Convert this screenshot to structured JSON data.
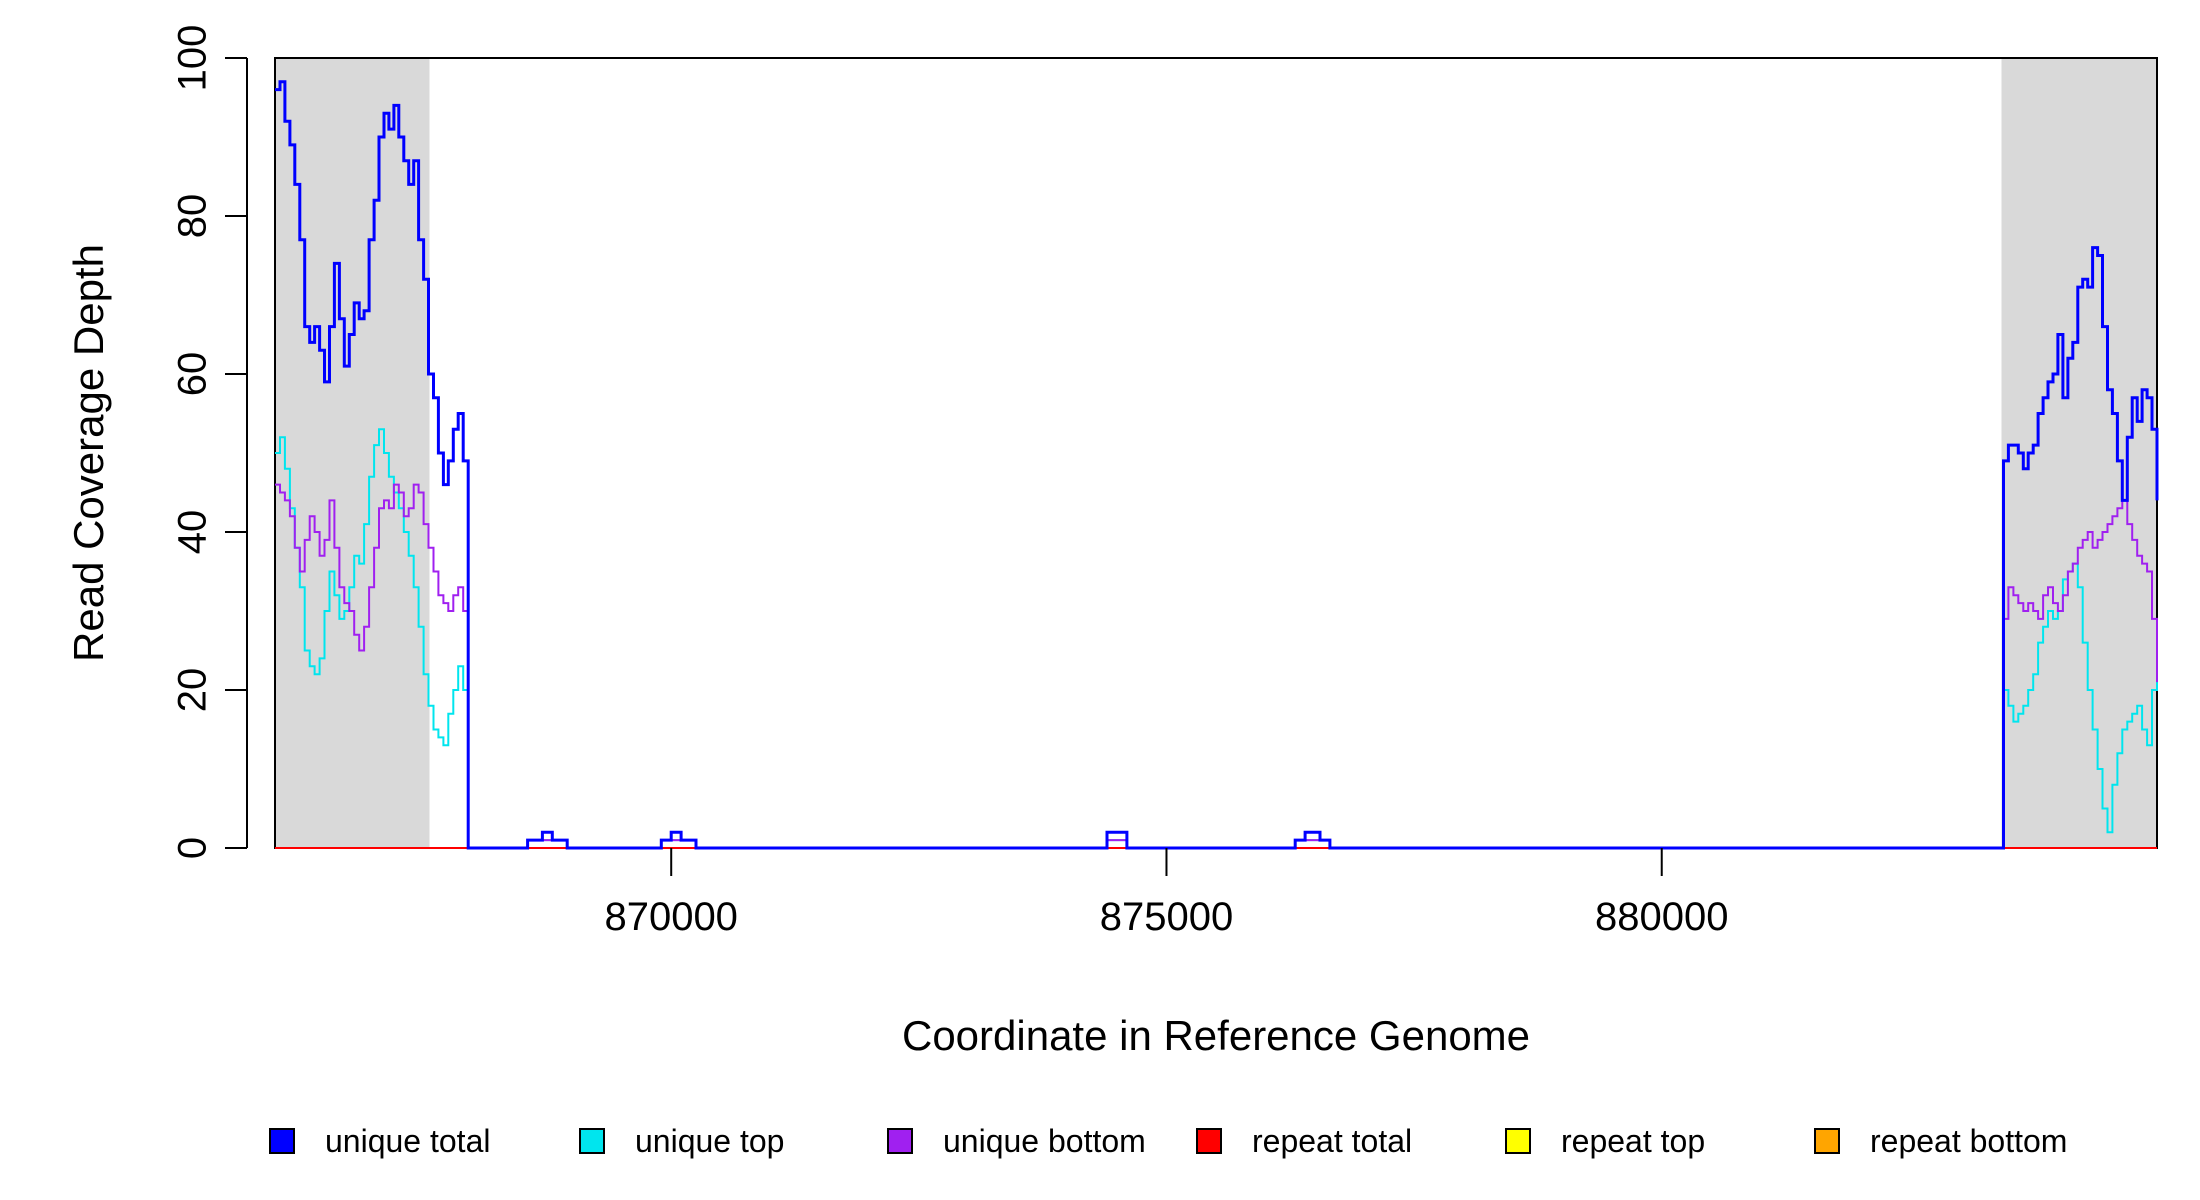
{
  "chart_data": {
    "type": "line",
    "title": "",
    "xlabel": "Coordinate in Reference Genome",
    "ylabel": "Read Coverage Depth",
    "xlim": [
      866000,
      885000
    ],
    "ylim": [
      0,
      100
    ],
    "x_ticks": [
      870000,
      875000,
      880000
    ],
    "x_tick_labels": [
      "870000",
      "875000",
      "880000"
    ],
    "y_ticks": [
      0,
      20,
      40,
      60,
      80,
      100
    ],
    "y_tick_labels": [
      "0",
      "20",
      "40",
      "60",
      "80",
      "100"
    ],
    "grid": false,
    "shaded_regions": [
      {
        "start": 866000,
        "end": 867560,
        "color": "#d9d9d9"
      },
      {
        "start": 883430,
        "end": 885000,
        "color": "#d9d9d9"
      }
    ],
    "legend_position": "bottom",
    "series": [
      {
        "name": "unique total",
        "color": "#0000ff",
        "points": [
          [
            866000,
            96
          ],
          [
            866050,
            97
          ],
          [
            866100,
            92
          ],
          [
            866150,
            89
          ],
          [
            866200,
            84
          ],
          [
            866250,
            77
          ],
          [
            866300,
            66
          ],
          [
            866350,
            64
          ],
          [
            866400,
            66
          ],
          [
            866450,
            63
          ],
          [
            866500,
            59
          ],
          [
            866550,
            66
          ],
          [
            866600,
            74
          ],
          [
            866650,
            67
          ],
          [
            866700,
            61
          ],
          [
            866750,
            65
          ],
          [
            866800,
            69
          ],
          [
            866850,
            67
          ],
          [
            866900,
            68
          ],
          [
            866950,
            77
          ],
          [
            867000,
            82
          ],
          [
            867050,
            90
          ],
          [
            867100,
            93
          ],
          [
            867150,
            91
          ],
          [
            867200,
            94
          ],
          [
            867250,
            90
          ],
          [
            867300,
            87
          ],
          [
            867350,
            84
          ],
          [
            867400,
            87
          ],
          [
            867450,
            77
          ],
          [
            867500,
            72
          ],
          [
            867550,
            60
          ],
          [
            867600,
            57
          ],
          [
            867650,
            50
          ],
          [
            867700,
            46
          ],
          [
            867750,
            49
          ],
          [
            867800,
            53
          ],
          [
            867850,
            55
          ],
          [
            867900,
            49
          ],
          [
            867950,
            0
          ],
          [
            868500,
            0
          ],
          [
            868550,
            1
          ],
          [
            868700,
            2
          ],
          [
            868800,
            1
          ],
          [
            868950,
            0
          ],
          [
            869850,
            0
          ],
          [
            869900,
            1
          ],
          [
            870000,
            2
          ],
          [
            870100,
            1
          ],
          [
            870250,
            0
          ],
          [
            874350,
            0
          ],
          [
            874400,
            2
          ],
          [
            874600,
            0
          ],
          [
            876200,
            0
          ],
          [
            876300,
            1
          ],
          [
            876400,
            2
          ],
          [
            876550,
            1
          ],
          [
            876650,
            0
          ],
          [
            883400,
            0
          ],
          [
            883450,
            49
          ],
          [
            883500,
            51
          ],
          [
            883600,
            50
          ],
          [
            883650,
            48
          ],
          [
            883700,
            50
          ],
          [
            883750,
            51
          ],
          [
            883800,
            55
          ],
          [
            883850,
            57
          ],
          [
            883900,
            59
          ],
          [
            883950,
            60
          ],
          [
            884000,
            65
          ],
          [
            884050,
            57
          ],
          [
            884100,
            62
          ],
          [
            884150,
            64
          ],
          [
            884200,
            71
          ],
          [
            884250,
            72
          ],
          [
            884300,
            71
          ],
          [
            884350,
            76
          ],
          [
            884400,
            75
          ],
          [
            884450,
            66
          ],
          [
            884500,
            58
          ],
          [
            884550,
            55
          ],
          [
            884600,
            49
          ],
          [
            884650,
            44
          ],
          [
            884700,
            52
          ],
          [
            884750,
            57
          ],
          [
            884800,
            54
          ],
          [
            884850,
            58
          ],
          [
            884900,
            57
          ],
          [
            884950,
            53
          ],
          [
            885000,
            44
          ]
        ]
      },
      {
        "name": "unique top",
        "color": "#00e5ee",
        "points": [
          [
            866000,
            50
          ],
          [
            866050,
            52
          ],
          [
            866100,
            48
          ],
          [
            866150,
            43
          ],
          [
            866200,
            38
          ],
          [
            866250,
            33
          ],
          [
            866300,
            25
          ],
          [
            866350,
            23
          ],
          [
            866400,
            22
          ],
          [
            866450,
            24
          ],
          [
            866500,
            30
          ],
          [
            866550,
            35
          ],
          [
            866600,
            32
          ],
          [
            866650,
            29
          ],
          [
            866700,
            30
          ],
          [
            866750,
            33
          ],
          [
            866800,
            37
          ],
          [
            866850,
            36
          ],
          [
            866900,
            41
          ],
          [
            866950,
            47
          ],
          [
            867000,
            51
          ],
          [
            867050,
            53
          ],
          [
            867100,
            50
          ],
          [
            867150,
            47
          ],
          [
            867200,
            45
          ],
          [
            867250,
            43
          ],
          [
            867300,
            40
          ],
          [
            867350,
            37
          ],
          [
            867400,
            33
          ],
          [
            867450,
            28
          ],
          [
            867500,
            22
          ],
          [
            867550,
            18
          ],
          [
            867600,
            15
          ],
          [
            867650,
            14
          ],
          [
            867700,
            13
          ],
          [
            867750,
            17
          ],
          [
            867800,
            20
          ],
          [
            867850,
            23
          ],
          [
            867900,
            20
          ],
          [
            867950,
            0
          ],
          [
            868500,
            0
          ],
          [
            868550,
            1
          ],
          [
            868700,
            1
          ],
          [
            868950,
            0
          ],
          [
            869850,
            0
          ],
          [
            869900,
            1
          ],
          [
            870100,
            1
          ],
          [
            870250,
            0
          ],
          [
            874350,
            0
          ],
          [
            874400,
            1
          ],
          [
            874600,
            0
          ],
          [
            876200,
            0
          ],
          [
            876300,
            1
          ],
          [
            876550,
            1
          ],
          [
            876650,
            0
          ],
          [
            883400,
            0
          ],
          [
            883450,
            20
          ],
          [
            883500,
            18
          ],
          [
            883550,
            16
          ],
          [
            883600,
            17
          ],
          [
            883650,
            18
          ],
          [
            883700,
            20
          ],
          [
            883750,
            22
          ],
          [
            883800,
            26
          ],
          [
            883850,
            28
          ],
          [
            883900,
            30
          ],
          [
            883950,
            29
          ],
          [
            884000,
            30
          ],
          [
            884050,
            34
          ],
          [
            884100,
            35
          ],
          [
            884150,
            36
          ],
          [
            884200,
            33
          ],
          [
            884250,
            26
          ],
          [
            884300,
            20
          ],
          [
            884350,
            15
          ],
          [
            884400,
            10
          ],
          [
            884450,
            5
          ],
          [
            884500,
            2
          ],
          [
            884550,
            8
          ],
          [
            884600,
            12
          ],
          [
            884650,
            15
          ],
          [
            884700,
            16
          ],
          [
            884750,
            17
          ],
          [
            884800,
            18
          ],
          [
            884850,
            15
          ],
          [
            884900,
            13
          ],
          [
            884950,
            20
          ],
          [
            885000,
            26
          ]
        ]
      },
      {
        "name": "unique bottom",
        "color": "#a020f0",
        "points": [
          [
            866000,
            46
          ],
          [
            866050,
            45
          ],
          [
            866100,
            44
          ],
          [
            866150,
            42
          ],
          [
            866200,
            38
          ],
          [
            866250,
            35
          ],
          [
            866300,
            39
          ],
          [
            866350,
            42
          ],
          [
            866400,
            40
          ],
          [
            866450,
            37
          ],
          [
            866500,
            39
          ],
          [
            866550,
            44
          ],
          [
            866600,
            38
          ],
          [
            866650,
            33
          ],
          [
            866700,
            31
          ],
          [
            866750,
            30
          ],
          [
            866800,
            27
          ],
          [
            866850,
            25
          ],
          [
            866900,
            28
          ],
          [
            866950,
            33
          ],
          [
            867000,
            38
          ],
          [
            867050,
            43
          ],
          [
            867100,
            44
          ],
          [
            867150,
            43
          ],
          [
            867200,
            46
          ],
          [
            867250,
            45
          ],
          [
            867300,
            42
          ],
          [
            867350,
            43
          ],
          [
            867400,
            46
          ],
          [
            867450,
            45
          ],
          [
            867500,
            41
          ],
          [
            867550,
            38
          ],
          [
            867600,
            35
          ],
          [
            867650,
            32
          ],
          [
            867700,
            31
          ],
          [
            867750,
            30
          ],
          [
            867800,
            32
          ],
          [
            867850,
            33
          ],
          [
            867900,
            30
          ],
          [
            867950,
            0
          ],
          [
            868500,
            0
          ],
          [
            868550,
            1
          ],
          [
            868700,
            1
          ],
          [
            868950,
            0
          ],
          [
            869850,
            0
          ],
          [
            869900,
            1
          ],
          [
            870100,
            1
          ],
          [
            870250,
            0
          ],
          [
            874350,
            0
          ],
          [
            874400,
            1
          ],
          [
            874600,
            0
          ],
          [
            876200,
            0
          ],
          [
            876300,
            1
          ],
          [
            876550,
            1
          ],
          [
            876650,
            0
          ],
          [
            883400,
            0
          ],
          [
            883450,
            29
          ],
          [
            883500,
            33
          ],
          [
            883550,
            32
          ],
          [
            883600,
            31
          ],
          [
            883650,
            30
          ],
          [
            883700,
            31
          ],
          [
            883750,
            30
          ],
          [
            883800,
            29
          ],
          [
            883850,
            32
          ],
          [
            883900,
            33
          ],
          [
            883950,
            31
          ],
          [
            884000,
            30
          ],
          [
            884050,
            32
          ],
          [
            884100,
            35
          ],
          [
            884150,
            36
          ],
          [
            884200,
            38
          ],
          [
            884250,
            39
          ],
          [
            884300,
            40
          ],
          [
            884350,
            38
          ],
          [
            884400,
            39
          ],
          [
            884450,
            40
          ],
          [
            884500,
            41
          ],
          [
            884550,
            42
          ],
          [
            884600,
            43
          ],
          [
            884650,
            44
          ],
          [
            884700,
            41
          ],
          [
            884750,
            39
          ],
          [
            884800,
            37
          ],
          [
            884850,
            36
          ],
          [
            884900,
            35
          ],
          [
            884950,
            29
          ],
          [
            885000,
            21
          ]
        ]
      },
      {
        "name": "repeat total",
        "color": "#ff0000",
        "points": [
          [
            866000,
            0
          ],
          [
            885000,
            0
          ]
        ]
      },
      {
        "name": "repeat top",
        "color": "#ffff00",
        "points": [
          [
            866000,
            0
          ],
          [
            885000,
            0
          ]
        ]
      },
      {
        "name": "repeat bottom",
        "color": "#ffa500",
        "points": [
          [
            866000,
            0
          ],
          [
            885000,
            0
          ]
        ]
      }
    ]
  }
}
